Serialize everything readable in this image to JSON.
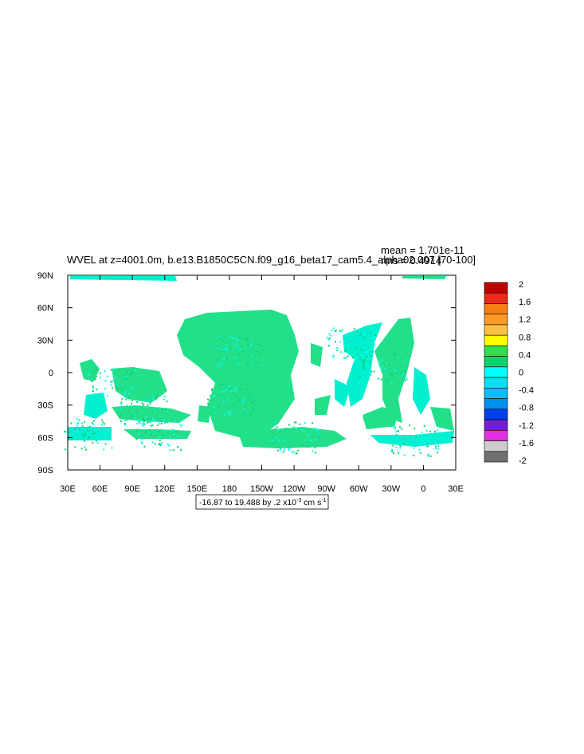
{
  "chart_data": {
    "type": "heatmap",
    "title": "WVEL at z=4001.0m, b.e13.B1850C5CN.f09_g16_beta17_cam5.4_alpha02.007 [70-100]",
    "stats": {
      "mean": "mean = 1.701e-11",
      "rms": "rms = 0.4914"
    },
    "x_ticks": [
      "30E",
      "60E",
      "90E",
      "120E",
      "150E",
      "180",
      "150W",
      "120W",
      "90W",
      "60W",
      "30W",
      "0",
      "30E"
    ],
    "y_ticks": [
      "90N",
      "60N",
      "30N",
      "0",
      "30S",
      "60S",
      "90S"
    ],
    "xlim": [
      30,
      390
    ],
    "ylim": [
      -90,
      90
    ],
    "colorbar": {
      "labels": [
        "2",
        "1.6",
        "1.2",
        "0.8",
        "0.4",
        "0",
        "-0.4",
        "-0.8",
        "-1.2",
        "-1.6",
        "-2"
      ],
      "colors": [
        "#c00000",
        "#ee2a1a",
        "#f47f12",
        "#fb9a28",
        "#fec040",
        "#fefe00",
        "#2ee04a",
        "#0fd06a",
        "#00fffe",
        "#00e0f0",
        "#00c0f5",
        "#0090f0",
        "#0040e8",
        "#7020d0",
        "#e030e0",
        "#cccccc",
        "#707070"
      ]
    },
    "range_label": "-16.87 to 19.488 by .2 x10",
    "range_exp": "-3",
    "range_units": " cm s",
    "range_units_exp": "-1"
  }
}
